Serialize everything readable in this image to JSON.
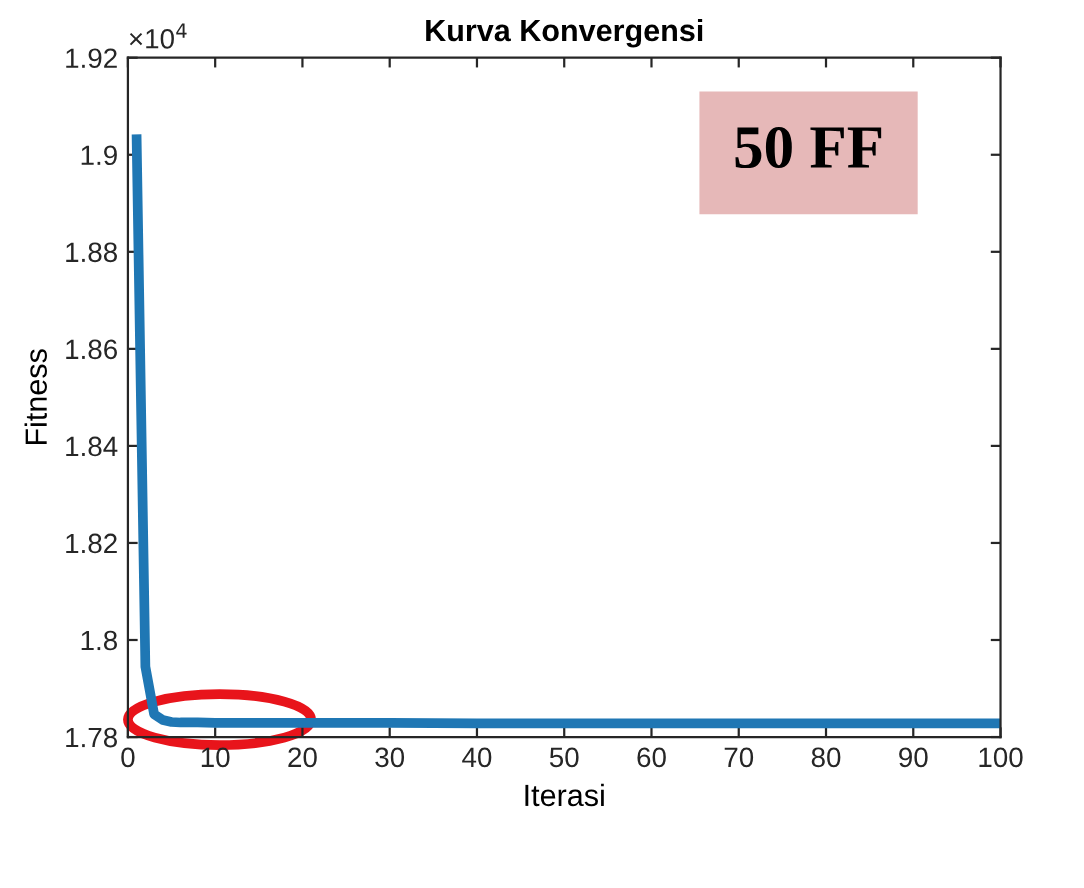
{
  "chart_data": {
    "type": "line",
    "title": "Kurva Konvergensi",
    "xlabel": "Iterasi",
    "ylabel": "Fitness",
    "x": [
      1,
      2,
      3,
      4,
      5,
      6,
      8,
      10,
      15,
      20,
      30,
      40,
      60,
      80,
      100
    ],
    "series": [
      {
        "color": "#1f77b4",
        "values": [
          1.9032,
          1.7945,
          1.7847,
          1.7835,
          1.7831,
          1.783,
          1.783,
          1.7829,
          1.7829,
          1.7829,
          1.7829,
          1.7828,
          1.7828,
          1.7828,
          1.7828
        ]
      }
    ],
    "xlim": [
      0,
      100
    ],
    "xticks": [
      0,
      10,
      20,
      30,
      40,
      50,
      60,
      70,
      80,
      90,
      100
    ],
    "ylim": [
      1.78,
      1.92
    ],
    "yticks": [
      1.78,
      1.8,
      1.82,
      1.84,
      1.86,
      1.88,
      1.9,
      1.92
    ],
    "grid": false,
    "legend": false,
    "marker": "none",
    "line_style": "solid",
    "annotations": [
      "×10$^{4}$",
      "50 FF"
    ]
  }
}
